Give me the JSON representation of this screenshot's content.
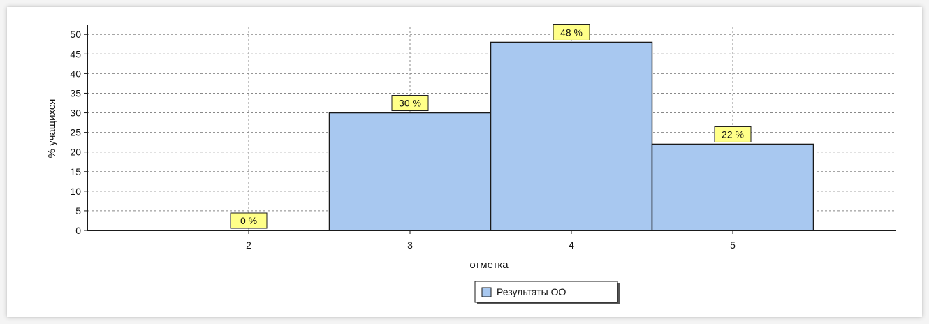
{
  "chart_data": {
    "type": "bar",
    "categories": [
      "2",
      "3",
      "4",
      "5"
    ],
    "series": [
      {
        "name": "Результаты ОО",
        "values": [
          0,
          30,
          48,
          22
        ],
        "data_labels": [
          "0 %",
          "30 %",
          "48 %",
          "22 %"
        ]
      }
    ],
    "xlabel": "отметка",
    "ylabel": "% учащихся",
    "ylim": [
      0,
      52
    ],
    "yticks": [
      0,
      5,
      10,
      15,
      20,
      25,
      30,
      35,
      40,
      45,
      50
    ],
    "grid": true,
    "legend_position": "bottom-center",
    "colors": {
      "bar_fill": "#a8c8f0",
      "bar_stroke": "#1a1a1a",
      "label_fill": "#ffff88",
      "grid": "#888888",
      "axis": "#1a1a1a"
    }
  }
}
